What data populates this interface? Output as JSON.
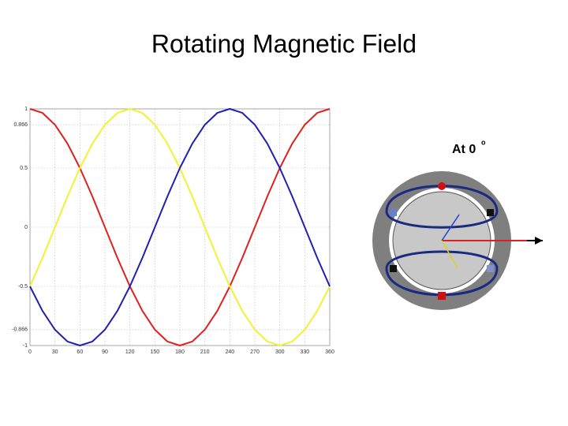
{
  "title": "Rotating Magnetic Field",
  "chart_data": {
    "type": "line",
    "x": [
      0,
      15,
      30,
      45,
      60,
      75,
      90,
      105,
      120,
      135,
      150,
      165,
      180,
      195,
      210,
      225,
      240,
      255,
      270,
      285,
      300,
      315,
      330,
      345,
      360
    ],
    "series": [
      {
        "color": "#e02020",
        "values": [
          1,
          0.966,
          0.866,
          0.707,
          0.5,
          0.259,
          0,
          -0.259,
          -0.5,
          -0.707,
          -0.866,
          -0.966,
          -1,
          -0.966,
          -0.866,
          -0.707,
          -0.5,
          -0.259,
          0,
          0.259,
          0.5,
          0.707,
          0.866,
          0.966,
          1
        ]
      },
      {
        "color": "#f5f030",
        "values": [
          -0.5,
          -0.259,
          0,
          0.259,
          0.5,
          0.707,
          0.866,
          0.966,
          1,
          0.966,
          0.866,
          0.707,
          0.5,
          0.259,
          0,
          -0.259,
          -0.5,
          -0.707,
          -0.866,
          -0.966,
          -1,
          -0.966,
          -0.866,
          -0.707,
          -0.5
        ]
      },
      {
        "color": "#2020b0",
        "values": [
          -0.5,
          -0.707,
          -0.866,
          -0.966,
          -1,
          -0.966,
          -0.866,
          -0.707,
          -0.5,
          -0.259,
          0,
          0.259,
          0.5,
          0.707,
          0.866,
          0.966,
          1,
          0.966,
          0.866,
          0.707,
          0.5,
          0.259,
          0,
          -0.259,
          -0.5
        ]
      }
    ],
    "xlim": [
      0,
      360
    ],
    "xticks": [
      0,
      30,
      60,
      90,
      120,
      150,
      180,
      210,
      240,
      270,
      300,
      330,
      360
    ],
    "ylim": [
      -1,
      1
    ],
    "yticks": [
      -1,
      -0.866,
      -0.5,
      0,
      0.5,
      0.866,
      1
    ],
    "grid": true
  },
  "diagram": {
    "label": "At 0",
    "superscript": "o"
  }
}
